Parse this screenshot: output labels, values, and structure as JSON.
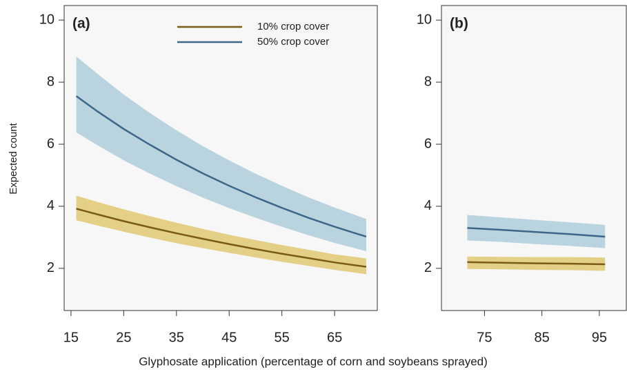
{
  "chart_data": [
    {
      "type": "line",
      "label": "(a)",
      "ylabel": "Expected count",
      "xlabel": "Glyphosate application (percentage of corn and soybeans sprayed)",
      "xlim": [
        13.7,
        73.1
      ],
      "ylim": [
        0.64,
        10.47
      ],
      "xticks": [
        15,
        25,
        35,
        45,
        55,
        65
      ],
      "yticks": [
        2,
        4,
        6,
        8,
        10
      ],
      "legend": "upper right",
      "x": [
        16,
        20,
        25,
        30,
        35,
        40,
        45,
        50,
        55,
        60,
        65,
        71
      ],
      "series": [
        {
          "name": "10% crop cover",
          "color": "#7a5a16",
          "band_color": "#e3cf85",
          "values": [
            3.92,
            3.74,
            3.52,
            3.32,
            3.13,
            2.95,
            2.78,
            2.62,
            2.47,
            2.33,
            2.19,
            2.05
          ],
          "lower": [
            3.55,
            3.38,
            3.18,
            2.99,
            2.81,
            2.65,
            2.5,
            2.35,
            2.21,
            2.08,
            1.95,
            1.81
          ],
          "upper": [
            4.34,
            4.14,
            3.9,
            3.68,
            3.47,
            3.27,
            3.08,
            2.91,
            2.75,
            2.6,
            2.45,
            2.32
          ]
        },
        {
          "name": "50% crop cover",
          "color": "#3d6688",
          "band_color": "#b9d4df",
          "values": [
            7.55,
            7.06,
            6.49,
            5.98,
            5.5,
            5.06,
            4.66,
            4.29,
            3.95,
            3.63,
            3.34,
            3.02
          ],
          "lower": [
            6.38,
            5.97,
            5.48,
            5.05,
            4.65,
            4.28,
            3.94,
            3.63,
            3.34,
            3.07,
            2.82,
            2.55
          ],
          "upper": [
            8.83,
            8.27,
            7.6,
            7.0,
            6.45,
            5.94,
            5.48,
            5.05,
            4.66,
            4.29,
            3.96,
            3.59
          ]
        }
      ]
    },
    {
      "type": "line",
      "label": "(b)",
      "xlim": [
        67.5,
        99.7
      ],
      "ylim": [
        0.64,
        10.47
      ],
      "xticks": [
        75,
        85,
        95
      ],
      "yticks": [
        2,
        4,
        6,
        8,
        10
      ],
      "x": [
        72,
        78,
        84,
        90,
        96
      ],
      "series": [
        {
          "color": "#7a5a16",
          "band_color": "#e3cf85",
          "values": [
            2.2,
            2.18,
            2.16,
            2.15,
            2.13
          ],
          "lower": [
            1.98,
            1.97,
            1.95,
            1.94,
            1.92
          ],
          "upper": [
            2.38,
            2.37,
            2.36,
            2.36,
            2.35
          ]
        },
        {
          "color": "#3d6688",
          "band_color": "#b9d4df",
          "values": [
            3.3,
            3.24,
            3.17,
            3.1,
            3.02
          ],
          "lower": [
            2.9,
            2.85,
            2.78,
            2.72,
            2.65
          ],
          "upper": [
            3.72,
            3.64,
            3.56,
            3.48,
            3.4
          ]
        }
      ]
    }
  ]
}
